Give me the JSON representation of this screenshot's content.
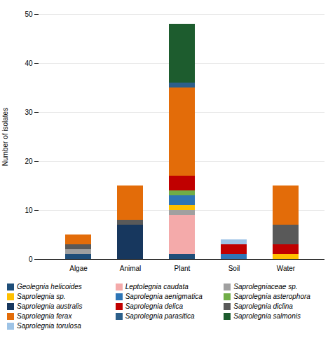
{
  "chart_data": {
    "type": "bar",
    "stacked": true,
    "categories": [
      "Algae",
      "Animal",
      "Plant",
      "Soil",
      "Water"
    ],
    "series": [
      {
        "name": "Geolegnia helicoides",
        "color": "#1F4E79",
        "values": [
          1,
          0,
          1,
          0,
          0
        ]
      },
      {
        "name": "Leptolegnia caudata",
        "color": "#F4AAAA",
        "values": [
          0,
          0,
          8,
          0,
          0
        ]
      },
      {
        "name": "Saprolegniaceae sp.",
        "color": "#A0A0A0",
        "values": [
          1,
          0,
          1,
          0,
          0
        ]
      },
      {
        "name": "Saprolegnia sp.",
        "color": "#FFC000",
        "values": [
          0,
          0,
          1,
          0,
          1
        ]
      },
      {
        "name": "Saprolegnia aenigmatica",
        "color": "#2E75B6",
        "values": [
          0,
          0,
          2,
          1,
          0
        ]
      },
      {
        "name": "Saprolegnia asterophora",
        "color": "#70AD47",
        "values": [
          0,
          0,
          1,
          0,
          0
        ]
      },
      {
        "name": "Saprolegnia australis",
        "color": "#17375E",
        "values": [
          0,
          7,
          0,
          0,
          0
        ]
      },
      {
        "name": "Saprolegnia delica",
        "color": "#C00000",
        "values": [
          0,
          0,
          3,
          2,
          2
        ]
      },
      {
        "name": "Saprolegnia diclina",
        "color": "#595959",
        "values": [
          1,
          1,
          0,
          0,
          4
        ]
      },
      {
        "name": "Saprolegnia ferax",
        "color": "#E36C09",
        "values": [
          2,
          7,
          18,
          0,
          8
        ]
      },
      {
        "name": "Saprolegnia parasitica",
        "color": "#2C5F8A",
        "values": [
          0,
          0,
          1,
          0,
          0
        ]
      },
      {
        "name": "Saprolegnia salmonis",
        "color": "#1D5C2E",
        "values": [
          0,
          0,
          12,
          0,
          0
        ]
      },
      {
        "name": "Saprolegnia torulosa",
        "color": "#9DC3E6",
        "values": [
          0,
          0,
          0,
          1,
          0
        ]
      }
    ],
    "ylabel": "Number of isolates",
    "ylim": [
      0,
      50
    ],
    "yticks": [
      0,
      10,
      20,
      30,
      40,
      50
    ],
    "grid": true,
    "legend": "bottom"
  }
}
